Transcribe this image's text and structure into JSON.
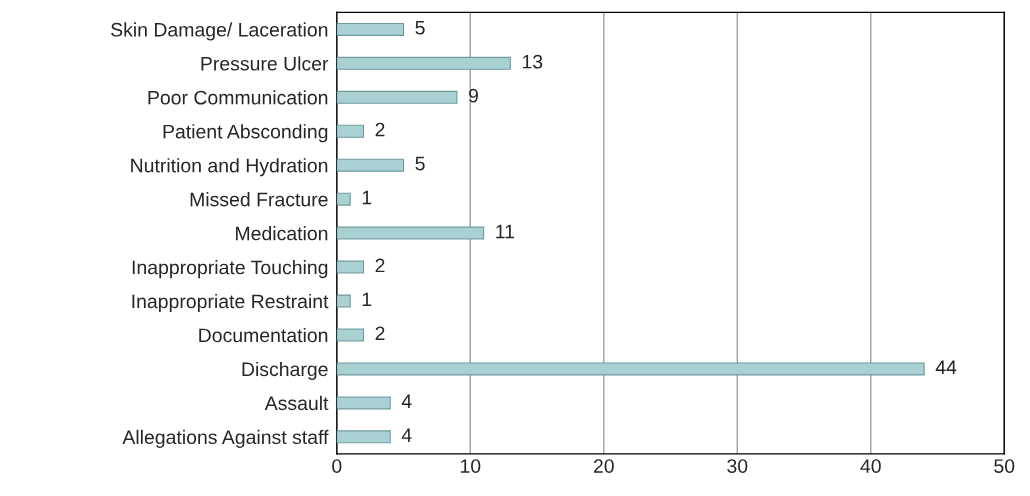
{
  "chart_data": {
    "type": "bar",
    "orientation": "horizontal",
    "categories": [
      "Skin Damage/ Laceration",
      "Pressure Ulcer",
      "Poor Communication",
      "Patient Absconding",
      "Nutrition and Hydration",
      "Missed Fracture",
      "Medication",
      "Inappropriate Touching",
      "Inappropriate Restraint",
      "Documentation",
      "Discharge",
      "Assault",
      "Allegations Against staff"
    ],
    "values": [
      5,
      13,
      9,
      2,
      5,
      1,
      11,
      2,
      1,
      2,
      44,
      4,
      4
    ],
    "color": "#a9d1d3",
    "xlim": [
      0,
      50
    ],
    "xticks": [
      0,
      10,
      20,
      30,
      40,
      50
    ],
    "grid": "x",
    "data_labels": true,
    "legend": false
  }
}
